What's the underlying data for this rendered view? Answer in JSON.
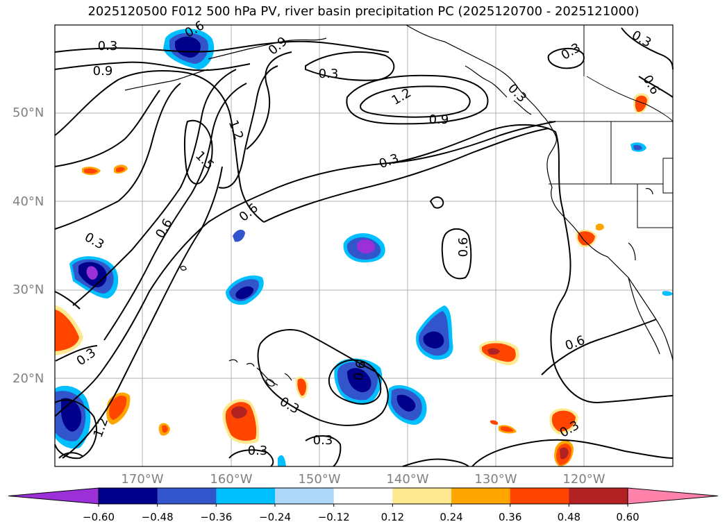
{
  "title": "2025120500 F012 500 hPa PV, river basin precipitation PC (2025120700 - 2025121000)",
  "lat_labels": [
    "50°N",
    "40°N",
    "30°N",
    "20°N"
  ],
  "lon_labels": [
    "170°W",
    "160°W",
    "150°W",
    "140°W",
    "130°W",
    "120°W"
  ],
  "contour_labels": [
    "0.3",
    "0.6",
    "0.9",
    "1.2",
    "1.5",
    "0.3",
    "0.9",
    "1.2",
    "0.3",
    "0.6",
    "0.6",
    "0.3",
    "0.3",
    "0.6",
    "0.3",
    "0.3",
    "0.3",
    "0.3",
    "0.6",
    "0.3",
    "1.2",
    "0.3",
    "0.6",
    "0.6",
    "0.3",
    "0.9"
  ],
  "colorbar": {
    "ticks": [
      "−0.60",
      "−0.48",
      "−0.36",
      "−0.24",
      "−0.12",
      "0.12",
      "0.24",
      "0.36",
      "0.48",
      "0.60"
    ],
    "colors": [
      "#9b30d9",
      "#00008b",
      "#3355cc",
      "#00bfff",
      "#add8f7",
      "#ffffff",
      "#ffe990",
      "#ffa500",
      "#ff4500",
      "#b22222",
      "#ff82ab"
    ]
  },
  "fill_colors": {
    "neg_outer": "#00bfff",
    "neg_mid": "#3355cc",
    "neg_inner": "#00008b",
    "neg_core": "#9b30d9",
    "pos_outer": "#ffe990",
    "pos_mid": "#ffa500",
    "pos_inner": "#ff4500",
    "pos_core": "#b22222"
  }
}
